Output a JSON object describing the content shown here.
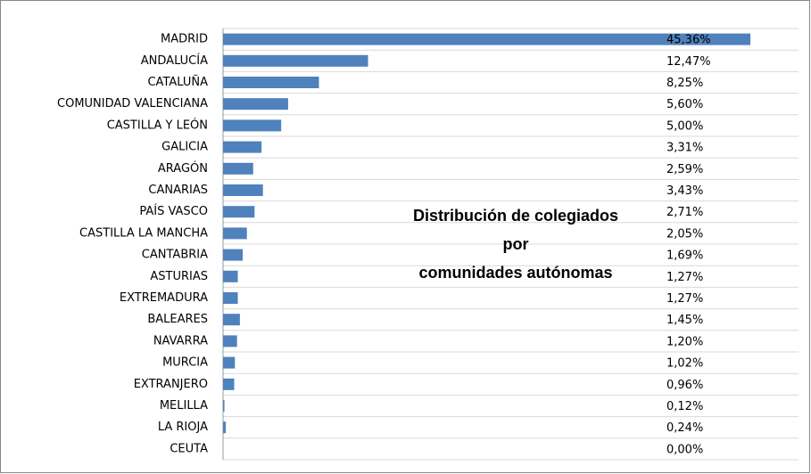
{
  "chart_data": {
    "type": "bar",
    "orientation": "horizontal",
    "title": [
      "Distribución de colegiados",
      "por",
      "comunidades autónomas"
    ],
    "categories": [
      "MADRID",
      "ANDALUCÍA",
      "CATALUÑA",
      "COMUNIDAD VALENCIANA",
      "CASTILLA Y LEÓN",
      "GALICIA",
      "ARAGÓN",
      "CANARIAS",
      "PAÍS VASCO",
      "CASTILLA LA MANCHA",
      "CANTABRIA",
      "ASTURIAS",
      "EXTREMADURA",
      "BALEARES",
      "NAVARRA",
      "MURCIA",
      "EXTRANJERO",
      "MELILLA",
      "LA RIOJA",
      "CEUTA"
    ],
    "values": [
      45.36,
      12.47,
      8.25,
      5.6,
      5.0,
      3.31,
      2.59,
      3.43,
      2.71,
      2.05,
      1.69,
      1.27,
      1.27,
      1.45,
      1.2,
      1.02,
      0.96,
      0.12,
      0.24,
      0.0
    ],
    "value_labels": [
      "45,36%",
      "12,47%",
      "8,25%",
      "5,60%",
      "5,00%",
      "3,31%",
      "2,59%",
      "3,43%",
      "2,71%",
      "2,05%",
      "1,69%",
      "1,27%",
      "1,27%",
      "1,45%",
      "1,20%",
      "1,02%",
      "0,96%",
      "0,12%",
      "0,24%",
      "0,00%"
    ],
    "color": "#4f81bd",
    "xlim": [
      0,
      49.5
    ],
    "grid": true
  }
}
